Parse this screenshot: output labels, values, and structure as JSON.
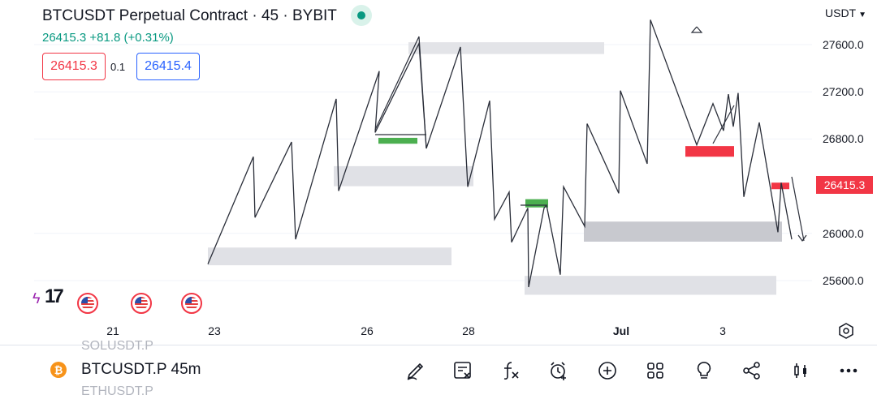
{
  "header": {
    "title": "BTCUSDT Perpetual Contract · 45 · BYBIT",
    "last_line": "26415.3 +81.8 (+0.31%)",
    "bid": "26415.3",
    "spread": "0.1",
    "ask": "26415.4",
    "currency": "USDT"
  },
  "chart_data": {
    "type": "line",
    "y_axis": {
      "ticks": [
        "27600.0",
        "27200.0",
        "26800.0",
        "26000.0",
        "25600.0"
      ],
      "range": [
        25300,
        27900
      ]
    },
    "last_price_label": "26415.3",
    "x_axis": {
      "ticks": [
        {
          "label": "21",
          "bold": false
        },
        {
          "label": "23",
          "bold": false
        },
        {
          "label": "26",
          "bold": false
        },
        {
          "label": "28",
          "bold": false
        },
        {
          "label": "Jul",
          "bold": true
        },
        {
          "label": "3",
          "bold": false
        }
      ]
    },
    "zigzag_prices": [
      25740,
      26650,
      26135,
      26775,
      25950,
      27140,
      26360,
      27375,
      26855,
      27610,
      26720,
      27580,
      26395,
      27125,
      26120,
      26350,
      25925,
      26215,
      25545,
      26215,
      26240,
      25650,
      26395,
      26060,
      26930,
      26340,
      27210,
      26590,
      27810,
      26750,
      27100,
      26870,
      27180,
      26905,
      27190,
      26310,
      26940,
      26010,
      26430,
      25950
    ],
    "zones": [
      {
        "kind": "supply-gray",
        "price_from": 27620,
        "price_to": 27520
      },
      {
        "kind": "gray",
        "price_from": 26570,
        "price_to": 26400
      },
      {
        "kind": "gray",
        "price_from": 25880,
        "price_to": 25730
      },
      {
        "kind": "gray",
        "price_from": 25640,
        "price_to": 25480
      },
      {
        "kind": "dark-gray",
        "price_from": 26100,
        "price_to": 25930
      },
      {
        "kind": "green",
        "price_from": 26810,
        "price_to": 26760
      },
      {
        "kind": "green",
        "price_from": 26290,
        "price_to": 26220
      },
      {
        "kind": "red",
        "price_from": 26740,
        "price_to": 26650
      },
      {
        "kind": "red",
        "price_from": 26430,
        "price_to": 26375
      }
    ]
  },
  "toolbar": {
    "symbol_icon": "bitcoin-icon",
    "symbol": "BTCUSDT.P 45m",
    "faded_above": "SOLUSDT.P",
    "faded_below": "ETHUSDT.P",
    "buttons": [
      "draw-icon",
      "order-ticket-icon",
      "indicators-icon",
      "alert-icon",
      "add-icon",
      "layouts-icon",
      "ideas-icon",
      "share-icon",
      "chart-type-icon",
      "more-icon"
    ]
  },
  "colors": {
    "up": "#089981",
    "down": "#f23645",
    "accent": "#2962ff"
  }
}
